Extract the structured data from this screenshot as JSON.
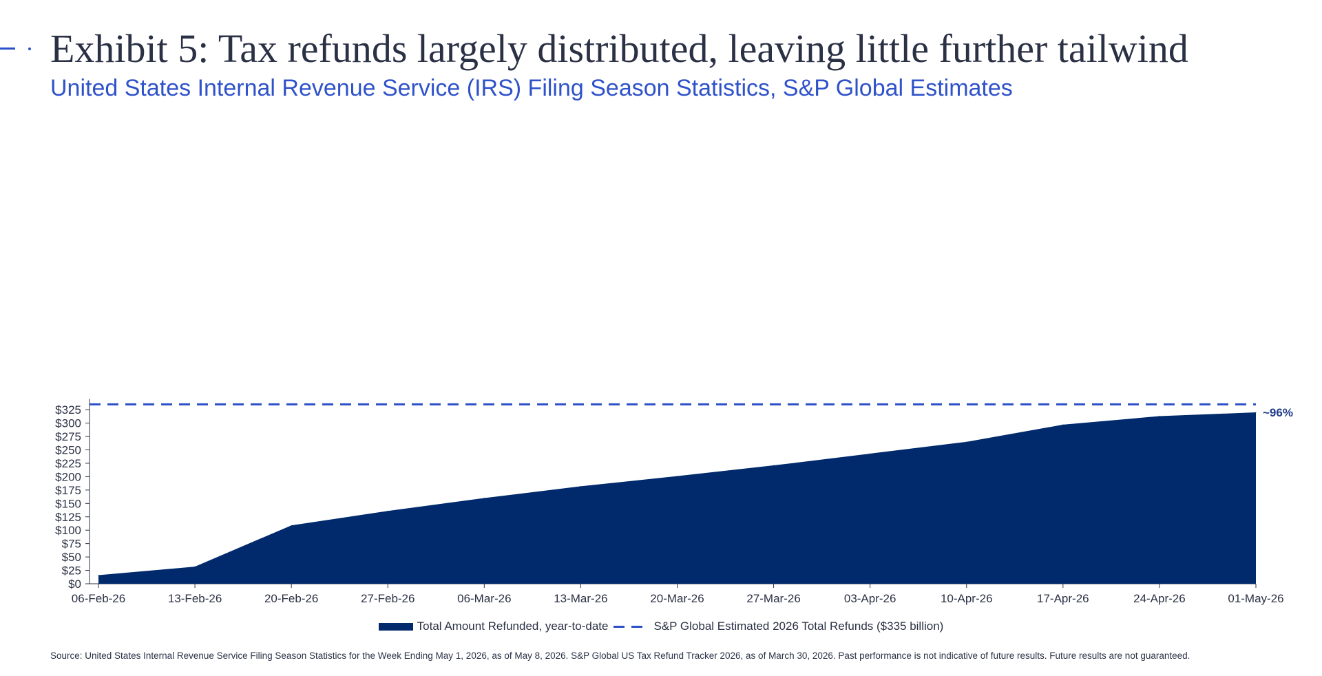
{
  "header": {
    "title": "Exhibit 5: Tax refunds largely distributed, leaving little further tailwind",
    "subtitle": "United States Internal Revenue Service (IRS) Filing Season Statistics, S&P Global Estimates"
  },
  "colors": {
    "area_fill": "#002a6c",
    "dashed_line": "#2b4fc9",
    "subtitle": "#2f52c9",
    "title": "#2b3145"
  },
  "chart_data": {
    "type": "area",
    "title": "Exhibit 5: Tax refunds largely distributed, leaving little further tailwind",
    "subtitle": "United States Internal Revenue Service (IRS) Filing Season Statistics, S&P Global Estimates",
    "x": [
      "06-Feb-26",
      "13-Feb-26",
      "20-Feb-26",
      "27-Feb-26",
      "06-Mar-26",
      "13-Mar-26",
      "20-Mar-26",
      "27-Mar-26",
      "03-Apr-26",
      "10-Apr-26",
      "17-Apr-26",
      "24-Apr-26",
      "01-May-26"
    ],
    "series": [
      {
        "name": "Total Amount Refunded, year-to-date",
        "type": "area",
        "values": [
          16,
          32,
          109,
          136,
          160,
          182,
          201,
          221,
          243,
          265,
          297,
          313,
          320
        ]
      },
      {
        "name": "S&P Global Estimated 2026 Total Refunds ($335 billion)",
        "type": "dashed-line",
        "value": 335
      }
    ],
    "yticks": [
      "$0",
      "$25",
      "$50",
      "$75",
      "$100",
      "$125",
      "$150",
      "$175",
      "$200",
      "$225",
      "$250",
      "$275",
      "$300",
      "$325"
    ],
    "ylim": [
      0,
      335
    ],
    "annotation": "~96%",
    "grid": false,
    "legend_position": "bottom"
  },
  "legend": {
    "area_label": "Total Amount Refunded, year-to-date",
    "dash_label": "S&P Global Estimated 2026 Total Refunds ($335 billion)"
  },
  "source": "Source: United States Internal Revenue Service Filing Season Statistics for the Week Ending May 1, 2026, as of May 8, 2026. S&P Global US Tax Refund Tracker 2026, as of March 30, 2026. Past performance is not indicative of future results. Future results are not guaranteed."
}
